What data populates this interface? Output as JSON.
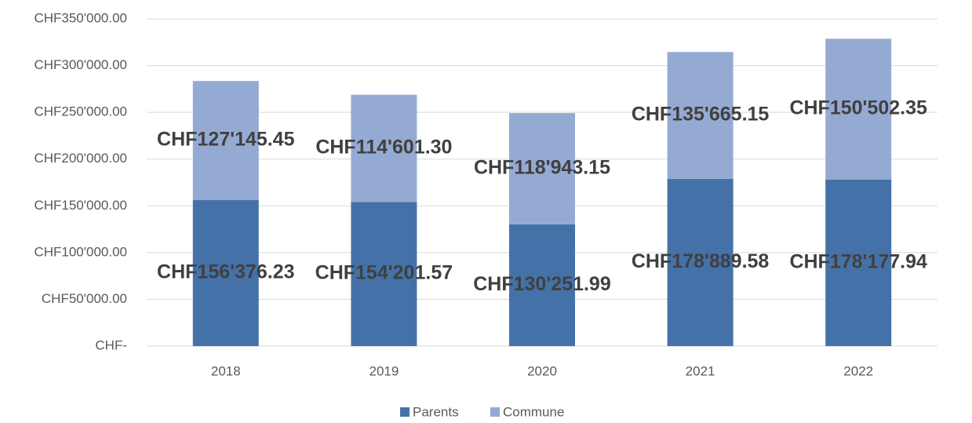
{
  "chart_data": {
    "type": "bar",
    "stacked": true,
    "categories": [
      "2018",
      "2019",
      "2020",
      "2021",
      "2022"
    ],
    "series": [
      {
        "name": "Parents",
        "color": "#4472a8",
        "values": [
          156376.23,
          154201.57,
          130251.99,
          178889.58,
          178177.94
        ],
        "value_labels": [
          "CHF156'376.23",
          "CHF154'201.57",
          "CHF130'251.99",
          "CHF178'889.58",
          "CHF178'177.94"
        ]
      },
      {
        "name": "Commune",
        "color": "#95aad3",
        "values": [
          127145.45,
          114601.3,
          118943.15,
          135665.15,
          150502.35
        ],
        "value_labels": [
          "CHF127'145.45",
          "CHF114'601.30",
          "CHF118'943.15",
          "CHF135'665.15",
          "CHF150'502.35"
        ]
      }
    ],
    "ylim": [
      0,
      350000
    ],
    "yticks": [
      {
        "value": 0,
        "label": "CHF-"
      },
      {
        "value": 50000,
        "label": "CHF50'000.00"
      },
      {
        "value": 100000,
        "label": "CHF100'000.00"
      },
      {
        "value": 150000,
        "label": "CHF150'000.00"
      },
      {
        "value": 200000,
        "label": "CHF200'000.00"
      },
      {
        "value": 250000,
        "label": "CHF250'000.00"
      },
      {
        "value": 300000,
        "label": "CHF300'000.00"
      },
      {
        "value": 350000,
        "label": "CHF350'000.00"
      }
    ],
    "grid": true,
    "legend": "bottom"
  }
}
